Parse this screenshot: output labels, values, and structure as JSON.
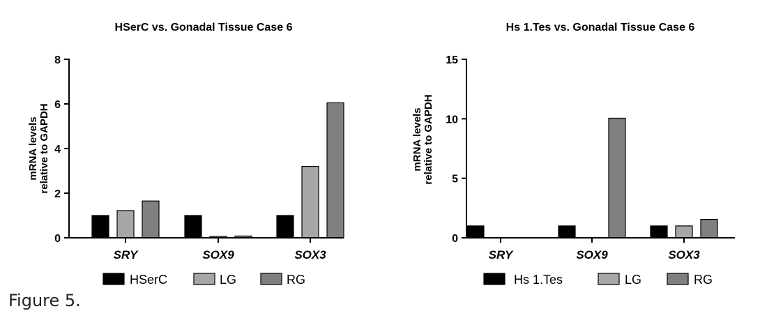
{
  "caption": "Figure 5.",
  "chart_data": [
    {
      "type": "bar",
      "title": "HSerC vs. Gonadal Tissue Case 6",
      "ylabel_lines": [
        "mRNA levels",
        "relative to GAPDH"
      ],
      "categories": [
        "SRY",
        "SOX9",
        "SOX3"
      ],
      "ylim": [
        0,
        8
      ],
      "yticks": [
        0,
        2,
        4,
        6,
        8
      ],
      "series": [
        {
          "name": "HSerC",
          "color": "#000000",
          "values": [
            1.0,
            1.0,
            1.0
          ]
        },
        {
          "name": "LG",
          "color": "#a6a6a6",
          "values": [
            1.22,
            0.06,
            3.2
          ]
        },
        {
          "name": "RG",
          "color": "#808080",
          "values": [
            1.65,
            0.08,
            6.05
          ]
        }
      ],
      "legend": "bottom"
    },
    {
      "type": "bar",
      "title": "Hs 1.Tes vs. Gonadal Tissue Case 6",
      "ylabel_lines": [
        "mRNA levels",
        "relative to GAPDH"
      ],
      "categories": [
        "SRY",
        "SOX9",
        "SOX3"
      ],
      "ylim": [
        0,
        15
      ],
      "yticks": [
        0,
        5,
        10,
        15
      ],
      "series": [
        {
          "name": "Hs 1.Tes",
          "color": "#000000",
          "values": [
            1.0,
            1.0,
            1.0
          ]
        },
        {
          "name": "LG",
          "color": "#a6a6a6",
          "values": [
            0,
            0,
            1.0
          ]
        },
        {
          "name": "RG",
          "color": "#808080",
          "values": [
            0,
            10.05,
            1.55
          ]
        }
      ],
      "legend": "bottom"
    }
  ]
}
